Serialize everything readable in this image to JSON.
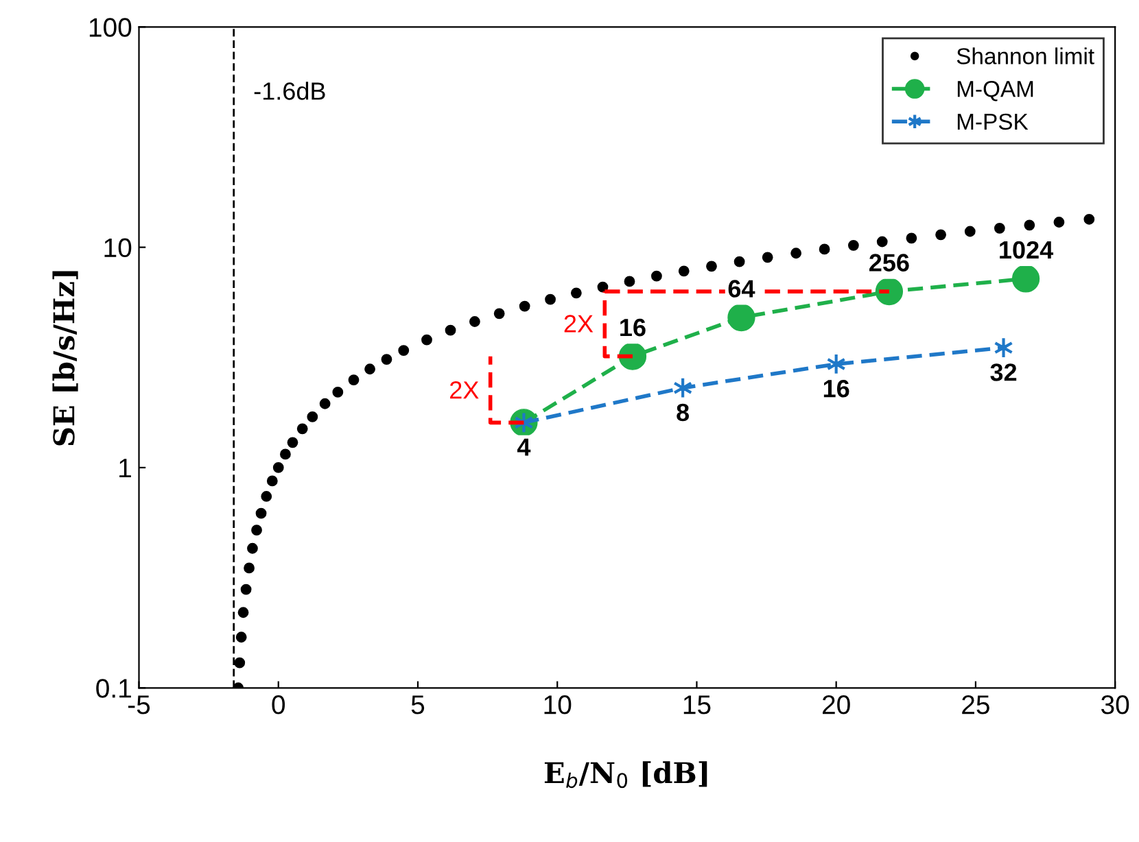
{
  "chart_data": {
    "type": "line",
    "xlabel": "E$_{b}$/N$_{0}$ [dB]",
    "ylabel": "SE [b/s/Hz]",
    "xlim": [
      -5,
      30
    ],
    "ylim": [
      0.1,
      100
    ],
    "xticks": [
      -5,
      0,
      5,
      10,
      15,
      20,
      25,
      30
    ],
    "yticks": [
      0.1,
      1,
      10,
      100
    ],
    "log": "y",
    "grid": false,
    "legend": "top right",
    "series": [
      {
        "name": "Shannon limit",
        "type": "scatter",
        "color": "#000000",
        "marker": "circle",
        "x": [
          -1.44,
          -1.39,
          -1.33,
          -1.26,
          -1.16,
          -1.05,
          -0.93,
          -0.78,
          -0.62,
          -0.43,
          -0.22,
          0,
          0.25,
          0.51,
          0.86,
          1.22,
          1.67,
          2.13,
          2.7,
          3.28,
          3.88,
          4.49,
          5.32,
          6.17,
          7.04,
          7.92,
          8.83,
          9.75,
          10.68,
          11.63,
          12.59,
          13.56,
          14.54,
          15.53,
          16.53,
          17.54,
          18.56,
          19.58,
          20.62,
          21.65,
          22.7,
          23.75,
          24.8,
          25.86,
          26.93,
          27.99,
          29.07
        ],
        "values": [
          0.1,
          0.13,
          0.17,
          0.22,
          0.28,
          0.35,
          0.43,
          0.52,
          0.62,
          0.74,
          0.87,
          1.0,
          1.15,
          1.3,
          1.5,
          1.7,
          1.95,
          2.2,
          2.5,
          2.8,
          3.1,
          3.4,
          3.8,
          4.2,
          4.6,
          5.0,
          5.4,
          5.8,
          6.2,
          6.6,
          7.0,
          7.4,
          7.8,
          8.2,
          8.6,
          9.0,
          9.4,
          9.8,
          10.2,
          10.6,
          11.0,
          11.4,
          11.8,
          12.2,
          12.6,
          13.0,
          13.4
        ]
      },
      {
        "name": "M-QAM",
        "type": "line",
        "color": "#1fb04a",
        "marker": "circle",
        "line_style": "dashed",
        "x": [
          8.8,
          12.7,
          16.6,
          21.9,
          26.8
        ],
        "values": [
          1.6,
          3.2,
          4.8,
          6.3,
          7.2
        ]
      },
      {
        "name": "M-PSK",
        "type": "line",
        "color": "#1f78c8",
        "marker": "cross",
        "line_style": "dashed",
        "x": [
          8.8,
          14.5,
          20.0,
          26.0
        ],
        "values": [
          1.6,
          2.3,
          2.95,
          3.5
        ]
      },
      {
        "color": "#ff0000",
        "line_style": "dashed",
        "x": [
          8.8,
          7.6,
          7.6
        ],
        "values": [
          1.6,
          1.6,
          3.2
        ]
      },
      {
        "color": "#ff0000",
        "line_style": "dashed",
        "x": [
          12.7,
          11.7,
          11.7
        ],
        "values": [
          3.2,
          3.2,
          6.3
        ]
      },
      {
        "color": "#ff0000",
        "line_style": "dashed",
        "x": [
          11.7,
          21.9
        ],
        "values": [
          6.3,
          6.3
        ]
      }
    ],
    "ref_lines": [
      {
        "axis": "x",
        "value": -1.6,
        "label": "-1.6dB",
        "color": "#000000",
        "line_style": "dashed"
      }
    ],
    "annotations": [
      {
        "text": "4",
        "x": 8.8,
        "y": 1.6
      },
      {
        "text": "16",
        "x": 12.7,
        "y": 3.2
      },
      {
        "text": "64",
        "x": 16.6,
        "y": 4.8
      },
      {
        "text": "256",
        "x": 21.9,
        "y": 6.3
      },
      {
        "text": "1024",
        "x": 26.8,
        "y": 7.2
      },
      {
        "text": "8",
        "x": 14.5,
        "y": 2.3
      },
      {
        "text": "16",
        "x": 20.0,
        "y": 2.95
      },
      {
        "text": "32",
        "x": 26.0,
        "y": 3.5
      },
      {
        "text": "2X",
        "x": 7.6,
        "y": 2.2
      },
      {
        "text": "2X",
        "x": 11.7,
        "y": 4.4
      }
    ]
  }
}
